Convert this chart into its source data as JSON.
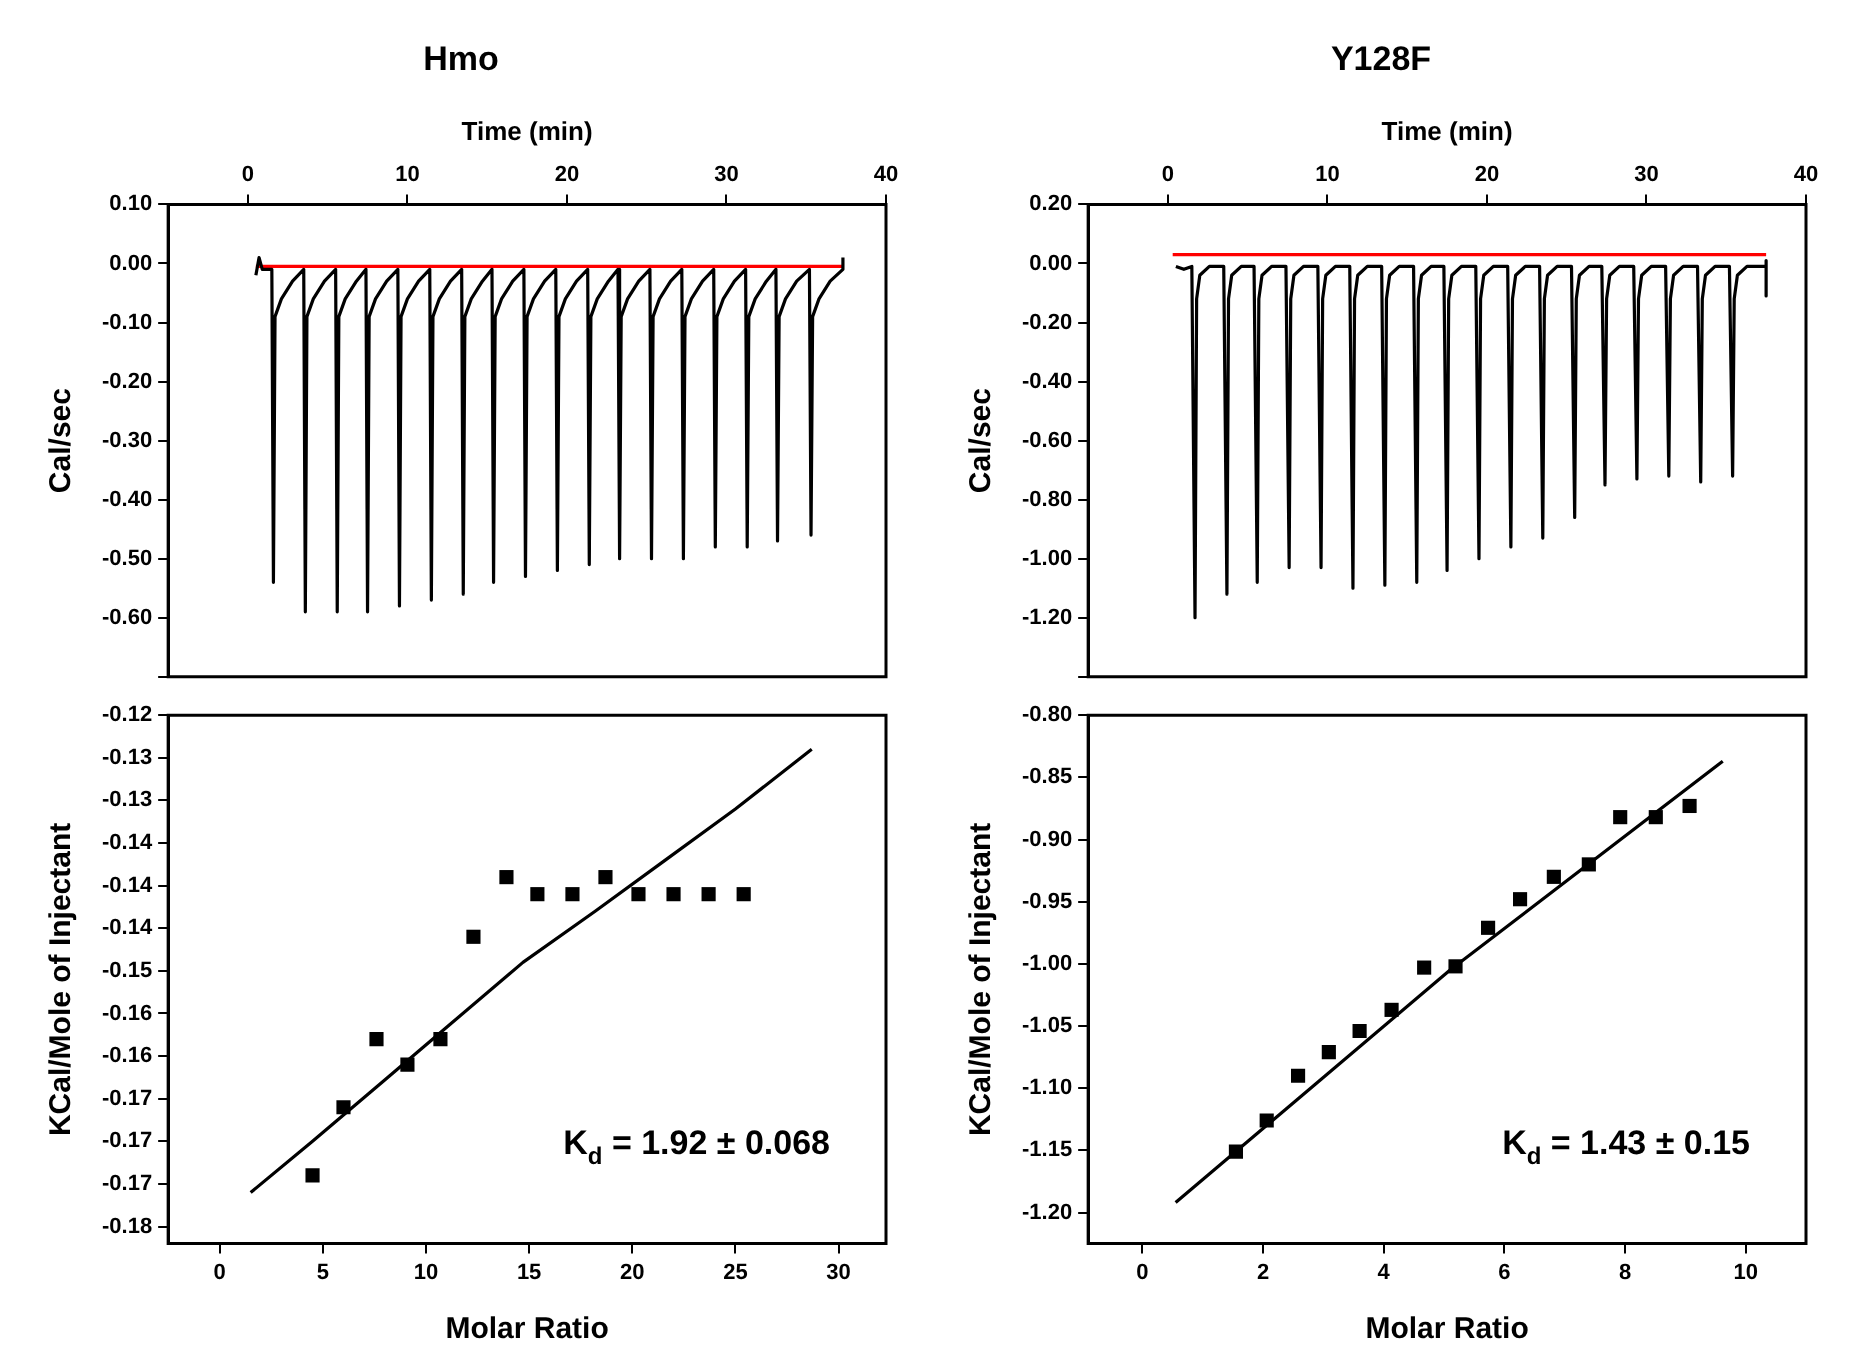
{
  "chart_data": [
    {
      "type": "line",
      "title": "Hmo",
      "ylabel": "Cal/sec",
      "xlabel": "Time (min)",
      "xlim": [
        -5,
        40
      ],
      "xticks": [
        0,
        10,
        20,
        30,
        40
      ],
      "ylim": [
        -0.7,
        0.1
      ],
      "yticks": [
        {
          "value": 0.1,
          "label": "0.10"
        },
        {
          "value": 0,
          "label": "0.00"
        },
        {
          "value": -0.1,
          "label": "-0.10"
        },
        {
          "value": -0.2,
          "label": "-0.20"
        },
        {
          "value": -0.3,
          "label": "-0.30"
        },
        {
          "value": -0.4,
          "label": "-0.40"
        },
        {
          "value": -0.5,
          "label": "-0.50"
        },
        {
          "value": -0.6,
          "label": "-0.60"
        },
        {
          "value": -0.7,
          "label": null
        }
      ],
      "grid": false,
      "legend": false,
      "line_style": "solid",
      "series": [
        {
          "color": "#000000",
          "x": [
            0.5,
            0.7,
            0.9,
            1.5,
            1.6,
            1.7,
            2.1,
            2.8,
            3.5,
            3.6,
            3.7,
            4.1,
            4.8,
            5.5,
            5.6,
            5.7,
            6.1,
            6.8,
            7.4,
            7.5,
            7.6,
            8.0,
            8.7,
            9.4,
            9.5,
            9.6,
            10.0,
            10.7,
            11.4,
            11.5,
            11.6,
            12.0,
            12.7,
            13.4,
            13.5,
            13.6,
            14.0,
            14.7,
            15.3,
            15.4,
            15.5,
            15.9,
            16.6,
            17.3,
            17.4,
            17.5,
            17.9,
            18.6,
            19.3,
            19.4,
            19.5,
            19.9,
            20.6,
            21.3,
            21.4,
            21.5,
            21.9,
            22.6,
            23.2,
            23.3,
            23.4,
            23.8,
            24.5,
            25.2,
            25.3,
            25.4,
            25.8,
            26.5,
            27.2,
            27.3,
            27.4,
            27.8,
            28.5,
            29.2,
            29.3,
            29.4,
            29.8,
            30.5,
            31.2,
            31.3,
            31.4,
            31.8,
            32.5,
            33.1,
            33.2,
            33.3,
            33.7,
            34.4,
            35.2,
            35.3,
            35.4,
            35.8,
            36.5,
            37.3,
            37.3
          ],
          "values": [
            -0.02,
            0.01,
            -0.01,
            -0.01,
            -0.54,
            -0.09,
            -0.06,
            -0.03,
            -0.01,
            -0.59,
            -0.09,
            -0.06,
            -0.03,
            -0.01,
            -0.59,
            -0.09,
            -0.06,
            -0.03,
            -0.01,
            -0.59,
            -0.09,
            -0.06,
            -0.03,
            -0.01,
            -0.58,
            -0.09,
            -0.06,
            -0.03,
            -0.01,
            -0.57,
            -0.09,
            -0.06,
            -0.03,
            -0.01,
            -0.56,
            -0.09,
            -0.06,
            -0.03,
            -0.01,
            -0.54,
            -0.09,
            -0.06,
            -0.03,
            -0.01,
            -0.53,
            -0.09,
            -0.06,
            -0.03,
            -0.01,
            -0.52,
            -0.09,
            -0.06,
            -0.03,
            -0.01,
            -0.51,
            -0.09,
            -0.06,
            -0.03,
            -0.01,
            -0.5,
            -0.09,
            -0.06,
            -0.03,
            -0.01,
            -0.5,
            -0.09,
            -0.06,
            -0.03,
            -0.01,
            -0.5,
            -0.09,
            -0.06,
            -0.03,
            -0.01,
            -0.48,
            -0.09,
            -0.06,
            -0.03,
            -0.01,
            -0.48,
            -0.09,
            -0.06,
            -0.03,
            -0.01,
            -0.47,
            -0.09,
            -0.06,
            -0.03,
            -0.01,
            -0.46,
            -0.09,
            -0.06,
            -0.03,
            -0.01,
            0.01
          ]
        },
        {
          "type": "line",
          "color": "#ff0000",
          "x": [
            0.5,
            37.3
          ],
          "values": [
            -0.005,
            -0.005
          ]
        }
      ]
    },
    {
      "type": "line",
      "title": "Y128F",
      "ylabel": "Cal/sec",
      "xlabel": "Time (min)",
      "xlim": [
        -5,
        40
      ],
      "xticks": [
        0,
        10,
        20,
        30,
        40
      ],
      "ylim": [
        -1.4,
        0.2
      ],
      "yticks": [
        {
          "value": 0.2,
          "label": "0.20"
        },
        {
          "value": 0,
          "label": "0.00"
        },
        {
          "value": -0.2,
          "label": "-0.20"
        },
        {
          "value": -0.4,
          "label": "-0.40"
        },
        {
          "value": -0.6,
          "label": "-0.60"
        },
        {
          "value": -0.8,
          "label": "-0.80"
        },
        {
          "value": -1.0,
          "label": "-1.00"
        },
        {
          "value": -1.2,
          "label": "-1.20"
        },
        {
          "value": -1.4,
          "label": null
        }
      ],
      "grid": false,
      "legend": false,
      "line_style": "solid",
      "series": [
        {
          "color": "#000000",
          "x": [
            0.5,
            1.0,
            1.5,
            1.7,
            1.8,
            2.0,
            2.6,
            3.5,
            3.7,
            3.8,
            4.0,
            4.6,
            5.4,
            5.6,
            5.7,
            5.9,
            6.5,
            7.4,
            7.6,
            7.7,
            7.9,
            8.5,
            9.4,
            9.6,
            9.7,
            9.9,
            10.5,
            11.4,
            11.6,
            11.7,
            11.9,
            12.5,
            13.4,
            13.6,
            13.7,
            13.9,
            14.5,
            15.4,
            15.6,
            15.7,
            15.9,
            16.5,
            17.3,
            17.5,
            17.6,
            17.8,
            18.4,
            19.3,
            19.5,
            19.6,
            19.8,
            20.4,
            21.3,
            21.5,
            21.6,
            21.8,
            22.4,
            23.3,
            23.5,
            23.6,
            23.8,
            24.4,
            25.3,
            25.5,
            25.6,
            25.8,
            26.4,
            27.2,
            27.4,
            27.5,
            27.7,
            28.3,
            29.2,
            29.4,
            29.5,
            29.7,
            30.3,
            31.2,
            31.4,
            31.5,
            31.7,
            32.3,
            33.2,
            33.4,
            33.5,
            33.7,
            34.3,
            35.2,
            35.4,
            35.5,
            35.7,
            36.3,
            37.5,
            37.5,
            37.5
          ],
          "values": [
            -0.01,
            -0.02,
            -0.01,
            -1.2,
            -0.12,
            -0.04,
            -0.01,
            -0.01,
            -1.12,
            -0.12,
            -0.04,
            -0.01,
            -0.01,
            -1.08,
            -0.12,
            -0.04,
            -0.01,
            -0.01,
            -1.03,
            -0.12,
            -0.04,
            -0.01,
            -0.01,
            -1.03,
            -0.12,
            -0.04,
            -0.01,
            -0.01,
            -1.1,
            -0.12,
            -0.04,
            -0.01,
            -0.01,
            -1.09,
            -0.12,
            -0.04,
            -0.01,
            -0.01,
            -1.08,
            -0.12,
            -0.04,
            -0.01,
            -0.01,
            -1.04,
            -0.12,
            -0.04,
            -0.01,
            -0.01,
            -1.0,
            -0.12,
            -0.04,
            -0.01,
            -0.01,
            -0.96,
            -0.12,
            -0.04,
            -0.01,
            -0.01,
            -0.93,
            -0.12,
            -0.04,
            -0.01,
            -0.01,
            -0.86,
            -0.12,
            -0.04,
            -0.01,
            -0.01,
            -0.75,
            -0.12,
            -0.04,
            -0.01,
            -0.01,
            -0.73,
            -0.12,
            -0.04,
            -0.01,
            -0.01,
            -0.72,
            -0.12,
            -0.04,
            -0.01,
            -0.01,
            -0.74,
            -0.12,
            -0.04,
            -0.01,
            -0.01,
            -0.72,
            -0.12,
            -0.04,
            -0.01,
            -0.01,
            0.01,
            -0.11
          ]
        },
        {
          "type": "line",
          "color": "#ff0000",
          "x": [
            0.3,
            37.5
          ],
          "values": [
            0.03,
            0.03
          ]
        }
      ]
    },
    {
      "type": "scatter",
      "xlabel": "Molar Ratio",
      "ylabel": "KCal/Mole of Injectant",
      "xlim": [
        -2.5,
        32.3
      ],
      "xticks": [
        0,
        5,
        10,
        15,
        20,
        25,
        30
      ],
      "ylim": [
        -0.182,
        -0.12
      ],
      "yticks": [
        {
          "value": -0.12,
          "label": "-0.12"
        },
        {
          "value": -0.125,
          "label": "-0.13"
        },
        {
          "value": -0.13,
          "label": "-0.13"
        },
        {
          "value": -0.135,
          "label": "-0.14"
        },
        {
          "value": -0.14,
          "label": "-0.14"
        },
        {
          "value": -0.145,
          "label": "-0.14"
        },
        {
          "value": -0.15,
          "label": "-0.15"
        },
        {
          "value": -0.155,
          "label": "-0.16"
        },
        {
          "value": -0.16,
          "label": "-0.16"
        },
        {
          "value": -0.165,
          "label": "-0.17"
        },
        {
          "value": -0.17,
          "label": "-0.17"
        },
        {
          "value": -0.175,
          "label": "-0.17"
        },
        {
          "value": -0.18,
          "label": "-0.18"
        }
      ],
      "grid": false,
      "legend": false,
      "annotations": [
        "K$_{d}$ = 1.92 ± 0.068"
      ],
      "series": [
        {
          "color": "#000000",
          "marker": "square",
          "x": [
            4.5,
            6.0,
            7.6,
            9.1,
            10.7,
            12.3,
            13.9,
            15.4,
            17.1,
            18.7,
            20.3,
            22.0,
            23.7,
            25.4
          ],
          "values": [
            -0.174,
            -0.166,
            -0.158,
            -0.161,
            -0.158,
            -0.146,
            -0.139,
            -0.141,
            -0.141,
            -0.139,
            -0.141,
            -0.141,
            -0.141,
            -0.141
          ]
        },
        {
          "type": "line",
          "color": "#000000",
          "x": [
            1.5,
            4.5,
            7.9,
            11.3,
            14.7,
            18.2,
            21.6,
            25.0,
            28.7
          ],
          "values": [
            -0.176,
            -0.17,
            -0.163,
            -0.156,
            -0.149,
            -0.143,
            -0.137,
            -0.131,
            -0.124
          ]
        }
      ]
    },
    {
      "type": "scatter",
      "xlabel": "Molar Ratio",
      "ylabel": "KCal/Mole of Injectant",
      "xlim": [
        -0.9,
        11
      ],
      "xticks": [
        0,
        2,
        4,
        6,
        8,
        10
      ],
      "ylim": [
        -1.225,
        -0.8
      ],
      "yticks": [
        {
          "value": -0.8,
          "label": "-0.80"
        },
        {
          "value": -0.85,
          "label": "-0.85"
        },
        {
          "value": -0.9,
          "label": "-0.90"
        },
        {
          "value": -0.95,
          "label": "-0.95"
        },
        {
          "value": -1.0,
          "label": "-1.00"
        },
        {
          "value": -1.05,
          "label": "-1.05"
        },
        {
          "value": -1.1,
          "label": "-1.10"
        },
        {
          "value": -1.15,
          "label": "-1.15"
        },
        {
          "value": -1.2,
          "label": "-1.20"
        }
      ],
      "grid": false,
      "legend": false,
      "annotations": [
        "K$_{d}$ = 1.43 ± 0.15"
      ],
      "series": [
        {
          "color": "#000000",
          "marker": "square",
          "x": [
            1.55,
            2.06,
            2.58,
            3.09,
            3.6,
            4.13,
            4.67,
            5.19,
            5.73,
            6.26,
            6.82,
            7.4,
            7.92,
            8.51,
            9.07
          ],
          "values": [
            -1.151,
            -1.126,
            -1.09,
            -1.071,
            -1.054,
            -1.037,
            -1.003,
            -1.002,
            -0.971,
            -0.948,
            -0.93,
            -0.92,
            -0.882,
            -0.882,
            -0.873
          ]
        },
        {
          "type": "line",
          "color": "#000000",
          "x": [
            0.55,
            5.1,
            9.62
          ],
          "values": [
            -1.192,
            -1.005,
            -0.837
          ]
        }
      ]
    }
  ]
}
